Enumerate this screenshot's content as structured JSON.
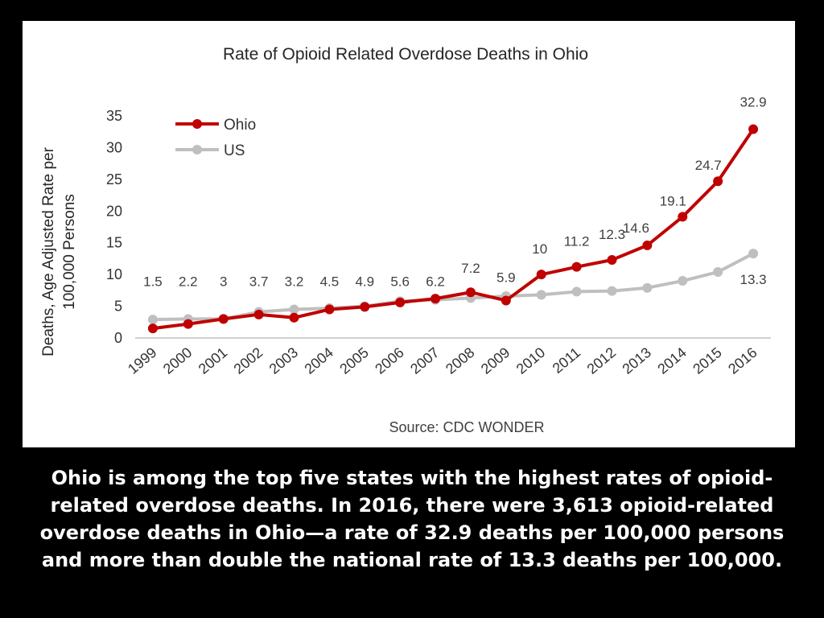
{
  "chart_data": {
    "type": "line",
    "title": "Rate of Opioid Related Overdose Deaths in Ohio",
    "ylabel_lines": [
      "Deaths, Age Adjusted Rate per",
      "100,000 Persons"
    ],
    "xlabel": "",
    "source": "Source: CDC WONDER",
    "legend_position": "top-left",
    "grid": false,
    "ylim": [
      0,
      35
    ],
    "yticks": [
      0,
      5,
      10,
      15,
      20,
      25,
      30,
      35
    ],
    "categories": [
      "1999",
      "2000",
      "2001",
      "2002",
      "2003",
      "2004",
      "2005",
      "2006",
      "2007",
      "2008",
      "2009",
      "2010",
      "2011",
      "2012",
      "2013",
      "2014",
      "2015",
      "2016"
    ],
    "series": [
      {
        "name": "Ohio",
        "color": "#c00000",
        "values": [
          1.5,
          2.2,
          3,
          3.7,
          3.2,
          4.5,
          4.9,
          5.6,
          6.2,
          7.2,
          5.9,
          10,
          11.2,
          12.3,
          14.6,
          19.1,
          24.7,
          32.9
        ],
        "labels": [
          "1.5",
          "2.2",
          "3",
          "3.7",
          "3.2",
          "4.5",
          "4.9",
          "5.6",
          "6.2",
          "7.2",
          "5.9",
          "10",
          "11.2",
          "12.3",
          "14.6",
          "19.1",
          "24.7",
          "32.9"
        ]
      },
      {
        "name": "US",
        "color": "#bfbfbf",
        "values": [
          2.9,
          3.0,
          3.0,
          4.1,
          4.5,
          4.7,
          5.0,
          5.8,
          6.0,
          6.3,
          6.6,
          6.8,
          7.3,
          7.4,
          7.9,
          9.0,
          10.4,
          13.3
        ],
        "labels": [
          "",
          "",
          "",
          "",
          "",
          "",
          "",
          "",
          "",
          "",
          "",
          "",
          "",
          "",
          "",
          "",
          "",
          "13.3"
        ]
      }
    ]
  },
  "caption": "Ohio is among the top five states with the highest rates of opioid-related overdose deaths. In 2016, there were 3,613 opioid-related overdose deaths in Ohio—a rate of 32.9 deaths per 100,000 persons and more than double the national rate of 13.3 deaths per 100,000."
}
